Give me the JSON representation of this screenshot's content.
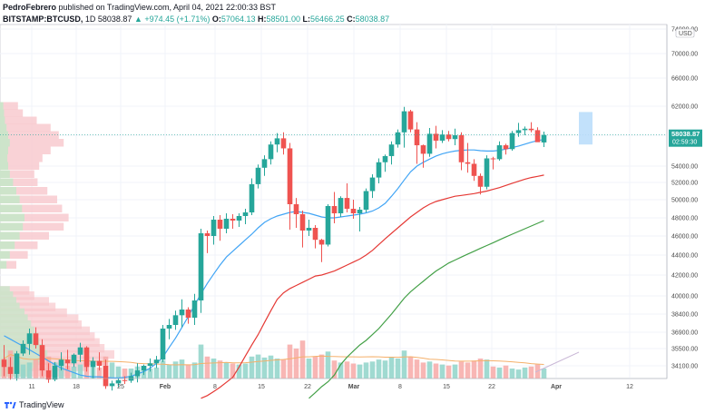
{
  "header": {
    "author": "PedroFebrero",
    "published_text": "published on TradingView.com, April 04, 2021 22:00:33 BST",
    "symbol": "BITSTAMP:BTCUSD,",
    "interval": "1D",
    "last": "58038.87",
    "change": "▲ +974.45 (+1.71%)",
    "o_key": "O:",
    "open": "57064.13",
    "h_key": "H:",
    "high": "58501.00",
    "l_key": "L:",
    "low": "56466.25",
    "c_key": "C:",
    "close": "58038.87"
  },
  "footer": {
    "brand": "TradingView"
  },
  "chart_data": {
    "type": "candlestick",
    "symbol": "BITSTAMP:BTCUSD",
    "interval": "1D",
    "currency_label": "USD",
    "price_label": "58038.87",
    "countdown_label": "02:59:30",
    "y_ticks": [
      "74000.00",
      "70000.00",
      "66000.00",
      "62000.00",
      "58000.00",
      "54000.00",
      "52000.00",
      "50000.00",
      "48000.00",
      "46000.00",
      "44000.00",
      "42000.00",
      "40000.00",
      "38400.00",
      "36900.00",
      "35500.00",
      "34100.00"
    ],
    "x_ticks": [
      "11",
      "18",
      "25",
      "Feb",
      "8",
      "15",
      "22",
      "Mar",
      "8",
      "15",
      "22",
      "Apr",
      "12"
    ],
    "last_price": 58038.87,
    "candles": [
      [
        34600,
        35800,
        33200,
        34000
      ],
      [
        34000,
        34800,
        32800,
        33400
      ],
      [
        33400,
        35300,
        32600,
        35100
      ],
      [
        35100,
        36200,
        34900,
        35900
      ],
      [
        35900,
        37200,
        35000,
        36800
      ],
      [
        36800,
        37300,
        35500,
        35800
      ],
      [
        35800,
        36300,
        33200,
        33700
      ],
      [
        33700,
        34300,
        32200,
        32800
      ],
      [
        32800,
        34400,
        32500,
        34100
      ],
      [
        34100,
        35200,
        33700,
        34600
      ],
      [
        34600,
        35400,
        33800,
        34300
      ],
      [
        34300,
        35100,
        34000,
        35000
      ],
      [
        35000,
        36000,
        34400,
        35600
      ],
      [
        35600,
        35700,
        33600,
        34000
      ],
      [
        34000,
        34800,
        33000,
        34500
      ],
      [
        34500,
        35200,
        33700,
        34100
      ],
      [
        34100,
        34600,
        31100,
        31600
      ],
      [
        31600,
        32600,
        30800,
        32100
      ],
      [
        32100,
        33000,
        31500,
        32700
      ],
      [
        32700,
        33200,
        32000,
        32600
      ],
      [
        32600,
        33500,
        32200,
        33200
      ],
      [
        33200,
        34300,
        32300,
        33700
      ],
      [
        33700,
        34200,
        33300,
        34100
      ],
      [
        34100,
        34700,
        33600,
        34300
      ],
      [
        34300,
        34900,
        33900,
        34600
      ],
      [
        34600,
        37500,
        34400,
        37200
      ],
      [
        37200,
        38000,
        36300,
        37500
      ],
      [
        37500,
        38700,
        37100,
        38300
      ],
      [
        38300,
        39700,
        37300,
        38800
      ],
      [
        38800,
        39000,
        37600,
        38100
      ],
      [
        38100,
        40200,
        37500,
        39600
      ],
      [
        39600,
        46800,
        38500,
        46300
      ],
      [
        46300,
        46600,
        44200,
        46000
      ],
      [
        46000,
        48200,
        45100,
        47800
      ],
      [
        47800,
        48300,
        45500,
        46800
      ],
      [
        46800,
        48500,
        46300,
        47900
      ],
      [
        47900,
        48400,
        46800,
        47700
      ],
      [
        47700,
        48500,
        47000,
        48200
      ],
      [
        48200,
        49000,
        47300,
        48600
      ],
      [
        48600,
        52500,
        48300,
        51800
      ],
      [
        51800,
        54200,
        51300,
        53800
      ],
      [
        53800,
        55400,
        52800,
        54900
      ],
      [
        54900,
        57200,
        54200,
        56800
      ],
      [
        56800,
        58300,
        55800,
        57600
      ],
      [
        57600,
        58400,
        55500,
        56300
      ],
      [
        56300,
        57000,
        46700,
        49500
      ],
      [
        49500,
        50200,
        46900,
        48400
      ],
      [
        48400,
        48800,
        44800,
        46600
      ],
      [
        46600,
        47800,
        46000,
        46900
      ],
      [
        46900,
        47200,
        44700,
        45600
      ],
      [
        45600,
        45700,
        43300,
        45100
      ],
      [
        45100,
        49500,
        44900,
        49300
      ],
      [
        49300,
        50900,
        47400,
        48500
      ],
      [
        48500,
        50400,
        48100,
        50200
      ],
      [
        50200,
        51900,
        48600,
        49000
      ],
      [
        49000,
        50000,
        47900,
        48500
      ],
      [
        48500,
        49200,
        46500,
        48900
      ],
      [
        48900,
        51300,
        48600,
        51000
      ],
      [
        51000,
        53000,
        50200,
        52600
      ],
      [
        52600,
        55000,
        51900,
        54500
      ],
      [
        54500,
        55500,
        53300,
        55300
      ],
      [
        55300,
        57200,
        54200,
        56800
      ],
      [
        56800,
        58800,
        56400,
        58400
      ],
      [
        58400,
        61900,
        56400,
        61300
      ],
      [
        61300,
        61500,
        58400,
        58800
      ],
      [
        58800,
        59800,
        54300,
        56700
      ],
      [
        56700,
        56800,
        53800,
        55600
      ],
      [
        55600,
        59000,
        55200,
        58200
      ],
      [
        58200,
        59300,
        56300,
        57300
      ],
      [
        57300,
        58700,
        57000,
        58100
      ],
      [
        58100,
        58600,
        57200,
        57500
      ],
      [
        57500,
        58900,
        56700,
        58000
      ],
      [
        58000,
        58400,
        53500,
        54500
      ],
      [
        54500,
        57000,
        53200,
        54300
      ],
      [
        54300,
        54900,
        52200,
        52800
      ],
      [
        52800,
        53100,
        50600,
        51500
      ],
      [
        51500,
        55400,
        51200,
        55000
      ],
      [
        55000,
        55200,
        53600,
        54900
      ],
      [
        54900,
        57200,
        54700,
        56700
      ],
      [
        56700,
        56900,
        55500,
        56200
      ],
      [
        56200,
        58600,
        56000,
        58300
      ],
      [
        58300,
        59700,
        57800,
        58700
      ],
      [
        58700,
        59200,
        58000,
        58900
      ],
      [
        58900,
        59800,
        58400,
        58700
      ],
      [
        58700,
        59100,
        57400,
        57100
      ],
      [
        57064,
        58501,
        56466,
        58039
      ]
    ],
    "volumes": [
      20,
      28,
      18,
      14,
      16,
      19,
      24,
      22,
      16,
      15,
      13,
      12,
      14,
      17,
      12,
      11,
      22,
      16,
      12,
      10,
      10,
      12,
      11,
      10,
      11,
      18,
      14,
      17,
      19,
      14,
      16,
      34,
      22,
      20,
      18,
      16,
      15,
      14,
      15,
      22,
      24,
      21,
      23,
      20,
      19,
      34,
      30,
      38,
      20,
      22,
      24,
      27,
      18,
      16,
      17,
      15,
      14,
      16,
      17,
      19,
      18,
      21,
      20,
      28,
      22,
      19,
      16,
      17,
      15,
      14,
      13,
      14,
      17,
      16,
      18,
      20,
      19,
      12,
      11,
      13,
      10,
      9,
      11,
      12,
      14,
      10
    ],
    "ma_fast": [
      36600,
      36300,
      36000,
      35700,
      35400,
      35100,
      34800,
      34500,
      34200,
      33900,
      33700,
      33500,
      33300,
      33200,
      33150,
      33150,
      33100,
      33050,
      33050,
      33100,
      33200,
      33400,
      33600,
      33900,
      34300,
      34800,
      35600,
      36400,
      37300,
      38200,
      39200,
      40200,
      41200,
      42100,
      43000,
      43800,
      44400,
      45000,
      45600,
      46200,
      46900,
      47500,
      47900,
      48200,
      48400,
      48600,
      48700,
      48600,
      48500,
      48300,
      48100,
      48000,
      48000,
      48100,
      48200,
      48300,
      48400,
      48550,
      48750,
      49100,
      49600,
      50400,
      51300,
      52300,
      53300,
      54000,
      54500,
      54900,
      55300,
      55600,
      55800,
      55950,
      56050,
      56100,
      56100,
      56000,
      55950,
      55950,
      56050,
      56200,
      56400,
      56600,
      56850,
      57100,
      57300,
      57450
    ],
    "ma_mid": [
      null,
      null,
      null,
      null,
      null,
      null,
      null,
      null,
      null,
      null,
      null,
      null,
      null,
      null,
      null,
      null,
      null,
      null,
      null,
      null,
      null,
      null,
      null,
      null,
      null,
      null,
      null,
      null,
      null,
      null,
      null,
      29000,
      29800,
      30600,
      31400,
      32300,
      33100,
      34000,
      34900,
      35800,
      36700,
      37700,
      38700,
      39700,
      40300,
      40700,
      41000,
      41300,
      41600,
      41900,
      42000,
      42200,
      42400,
      42700,
      43000,
      43300,
      43600,
      44000,
      44500,
      45100,
      45700,
      46300,
      46900,
      47500,
      48100,
      48600,
      49100,
      49500,
      49800,
      50000,
      50200,
      50400,
      50500,
      50600,
      50700,
      50850,
      51000,
      51200,
      51400,
      51650,
      51900,
      52150,
      52400,
      52600,
      52750,
      52900
    ],
    "ma_slow": [
      null,
      null,
      null,
      null,
      null,
      null,
      null,
      null,
      null,
      null,
      null,
      null,
      null,
      null,
      null,
      null,
      null,
      null,
      null,
      null,
      null,
      null,
      null,
      null,
      null,
      null,
      null,
      null,
      null,
      null,
      null,
      null,
      null,
      null,
      null,
      null,
      null,
      null,
      null,
      null,
      null,
      null,
      null,
      null,
      null,
      null,
      null,
      null,
      29000,
      30400,
      31500,
      32400,
      33300,
      34200,
      34800,
      35300,
      35800,
      36200,
      36700,
      37200,
      37800,
      38400,
      39100,
      39800,
      40400,
      40900,
      41400,
      41900,
      42400,
      42800,
      43200,
      43500,
      43800,
      44100,
      44400,
      44700,
      45000,
      45300,
      45600,
      45900,
      46200,
      46500,
      46800,
      47100,
      47400,
      47700
    ],
    "volume_profile_upper": [
      [
        62000,
        22,
        4
      ],
      [
        61000,
        28,
        5
      ],
      [
        60000,
        45,
        6
      ],
      [
        59000,
        62,
        8
      ],
      [
        58000,
        72,
        10
      ],
      [
        57000,
        78,
        12
      ],
      [
        56000,
        62,
        10
      ],
      [
        55000,
        52,
        9
      ],
      [
        54000,
        48,
        10
      ],
      [
        53000,
        42,
        12
      ],
      [
        52000,
        46,
        16
      ],
      [
        51000,
        58,
        20
      ],
      [
        50000,
        70,
        24
      ],
      [
        49000,
        76,
        27
      ],
      [
        48000,
        84,
        30
      ],
      [
        47000,
        78,
        28
      ],
      [
        46000,
        60,
        24
      ],
      [
        45000,
        46,
        18
      ],
      [
        44000,
        34,
        12
      ],
      [
        43000,
        20,
        8
      ]
    ],
    "volume_profile_lower": [
      [
        40500,
        36,
        12
      ],
      [
        40000,
        42,
        16
      ],
      [
        39500,
        60,
        20
      ],
      [
        39000,
        68,
        24
      ],
      [
        38500,
        82,
        30
      ],
      [
        38000,
        96,
        34
      ],
      [
        37500,
        100,
        38
      ],
      [
        37000,
        110,
        42
      ],
      [
        36500,
        116,
        46
      ],
      [
        36000,
        122,
        48
      ],
      [
        35500,
        128,
        52
      ],
      [
        35000,
        140,
        58
      ],
      [
        34500,
        130,
        54
      ],
      [
        34000,
        108,
        46
      ],
      [
        33500,
        88,
        36
      ]
    ]
  }
}
